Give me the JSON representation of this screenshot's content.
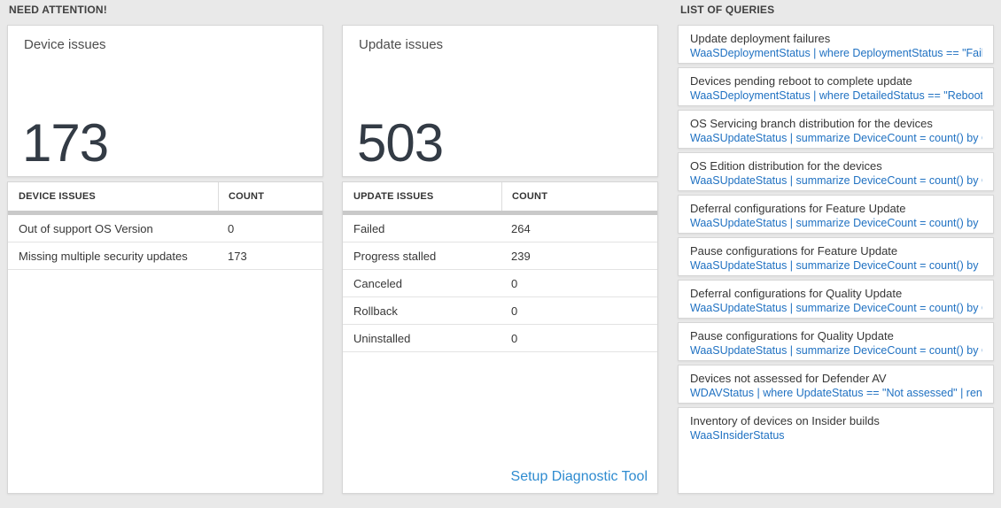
{
  "colors": {
    "link_blue": "#1f71c2",
    "setup_link_blue": "#2e8bd0",
    "number_color": "#333b45",
    "bar_color": "#c9c9c9"
  },
  "need_attention": {
    "section_title": "NEED ATTENTION!",
    "device_tile": {
      "title": "Device issues",
      "value": "173"
    },
    "device_table": {
      "headers": [
        "DEVICE ISSUES",
        "COUNT"
      ],
      "rows": [
        {
          "label": "Out of support OS Version",
          "count": "0"
        },
        {
          "label": "Missing multiple security updates",
          "count": "173"
        }
      ]
    },
    "update_tile": {
      "title": "Update issues",
      "value": "503"
    },
    "update_table": {
      "headers": [
        "UPDATE ISSUES",
        "COUNT"
      ],
      "rows": [
        {
          "label": "Failed",
          "count": "264"
        },
        {
          "label": "Progress stalled",
          "count": "239"
        },
        {
          "label": "Canceled",
          "count": "0"
        },
        {
          "label": "Rollback",
          "count": "0"
        },
        {
          "label": "Uninstalled",
          "count": "0"
        }
      ]
    },
    "setup_link_label": "Setup Diagnostic Tool"
  },
  "queries_panel": {
    "section_title": "LIST OF QUERIES",
    "items": [
      {
        "title": "Update deployment failures",
        "query": "WaaSDeploymentStatus | where DeploymentStatus == \"Failed\" |..."
      },
      {
        "title": "Devices pending reboot to complete update",
        "query": "WaaSDeploymentStatus | where DetailedStatus == \"Reboot pend..."
      },
      {
        "title": "OS Servicing branch distribution for the devices",
        "query": "WaaSUpdateStatus | summarize DeviceCount = count() by OSSer..."
      },
      {
        "title": "OS Edition distribution for the devices",
        "query": "WaaSUpdateStatus | summarize DeviceCount = count() by OSEdit..."
      },
      {
        "title": "Deferral configurations for Feature Update",
        "query": "WaaSUpdateStatus | summarize DeviceCount = count() by Featur..."
      },
      {
        "title": "Pause configurations for Feature Update",
        "query": "WaaSUpdateStatus | summarize DeviceCount = count() by Featur..."
      },
      {
        "title": "Deferral configurations for Quality Update",
        "query": "WaaSUpdateStatus | summarize DeviceCount = count() by Qualit..."
      },
      {
        "title": "Pause configurations for Quality Update",
        "query": "WaaSUpdateStatus | summarize DeviceCount = count() by Qualit..."
      },
      {
        "title": "Devices not assessed for Defender AV",
        "query": "WDAVStatus | where UpdateStatus == \"Not assessed\" | render ta..."
      },
      {
        "title": "Inventory of devices on Insider builds",
        "query": "WaaSInsiderStatus"
      }
    ]
  }
}
